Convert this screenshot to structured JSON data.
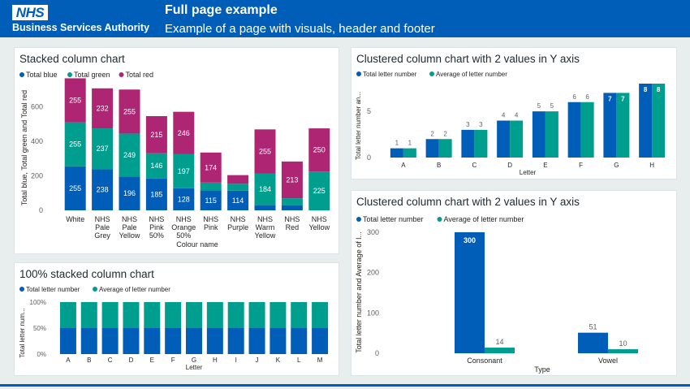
{
  "header": {
    "logo": "NHS",
    "org": "Business Services Authority",
    "title": "Full page example",
    "subtitle": "Example of a page with visuals, header and footer"
  },
  "colors": {
    "blue": "#005eb8",
    "green": "#009e8f",
    "magenta": "#ae2573"
  },
  "chart_data": [
    {
      "type": "bar",
      "stacked": true,
      "title": "Stacked column chart",
      "xlabel": "Colour name",
      "ylabel": "Total blue, Total green and Total red",
      "categories": [
        [
          "White"
        ],
        [
          "NHS",
          "Pale",
          "Grey"
        ],
        [
          "NHS",
          "Pale",
          "Yellow"
        ],
        [
          "NHS",
          "Pink",
          "50%"
        ],
        [
          "NHS",
          "Orange",
          "50%"
        ],
        [
          "NHS",
          "Pink"
        ],
        [
          "NHS",
          "Purple"
        ],
        [
          "NHS",
          "Warm",
          "Yellow"
        ],
        [
          "NHS",
          "Red"
        ],
        [
          "NHS",
          "Yellow"
        ]
      ],
      "series": [
        {
          "name": "Total blue",
          "color": "#005eb8",
          "values": [
            255,
            238,
            196,
            185,
            128,
            115,
            114,
            30,
            30,
            0
          ],
          "labels": [
            "255",
            "238",
            "196",
            "185",
            "128",
            "115",
            "114",
            "",
            "",
            ""
          ]
        },
        {
          "name": "Total green",
          "color": "#009e8f",
          "values": [
            255,
            237,
            249,
            146,
            197,
            46,
            40,
            184,
            40,
            225
          ],
          "labels": [
            "255",
            "237",
            "249",
            "146",
            "197",
            "",
            "",
            "184",
            "",
            "225"
          ]
        },
        {
          "name": "Total red",
          "color": "#ae2573",
          "values": [
            255,
            232,
            255,
            215,
            246,
            174,
            50,
            255,
            213,
            250
          ],
          "labels": [
            "255",
            "232",
            "255",
            "215",
            "246",
            "174",
            "",
            "255",
            "213",
            "250"
          ]
        }
      ],
      "yticks": [
        0,
        200,
        400,
        600
      ],
      "ylim": [
        0,
        800
      ],
      "legend": "top-left"
    },
    {
      "type": "bar",
      "title": "Clustered column chart with 2 values in Y axis",
      "xlabel": "Letter",
      "ylabel": "Total letter number an...",
      "categories": [
        "A",
        "B",
        "C",
        "D",
        "E",
        "F",
        "G",
        "H"
      ],
      "series": [
        {
          "name": "Total letter number",
          "color": "#005eb8",
          "values": [
            1,
            2,
            3,
            4,
            5,
            6,
            7,
            8
          ]
        },
        {
          "name": "Average of letter number",
          "color": "#009e8f",
          "values": [
            1,
            2,
            3,
            4,
            5,
            6,
            7,
            8
          ]
        }
      ],
      "yticks": [
        0,
        5
      ],
      "ylim": [
        0,
        8
      ],
      "legend": "top-left"
    },
    {
      "type": "bar",
      "stacked_percent": true,
      "title": "100% stacked column chart",
      "xlabel": "Letter",
      "ylabel": "Total letter num...",
      "categories": [
        "A",
        "B",
        "C",
        "D",
        "E",
        "F",
        "G",
        "H",
        "I",
        "J",
        "K",
        "L",
        "M"
      ],
      "series": [
        {
          "name": "Total letter number",
          "color": "#005eb8",
          "values": [
            50,
            50,
            50,
            50,
            50,
            50,
            50,
            50,
            50,
            50,
            50,
            50,
            50
          ]
        },
        {
          "name": "Average of letter number",
          "color": "#009e8f",
          "values": [
            50,
            50,
            50,
            50,
            50,
            50,
            50,
            50,
            50,
            50,
            50,
            50,
            50
          ]
        }
      ],
      "yticks": [
        "0%",
        "50%",
        "100%"
      ],
      "ylim": [
        0,
        100
      ],
      "legend": "top-left"
    },
    {
      "type": "bar",
      "title": "Clustered column chart with 2 values in Y axis",
      "xlabel": "Type",
      "ylabel": "Total letter number and Average of l...",
      "categories": [
        "Consonant",
        "Vowel"
      ],
      "series": [
        {
          "name": "Total letter number",
          "color": "#005eb8",
          "values": [
            300,
            51
          ]
        },
        {
          "name": "Average of letter number",
          "color": "#009e8f",
          "values": [
            14,
            10
          ]
        }
      ],
      "yticks": [
        0,
        100,
        200,
        300
      ],
      "ylim": [
        0,
        310
      ],
      "legend": "top-left"
    }
  ]
}
